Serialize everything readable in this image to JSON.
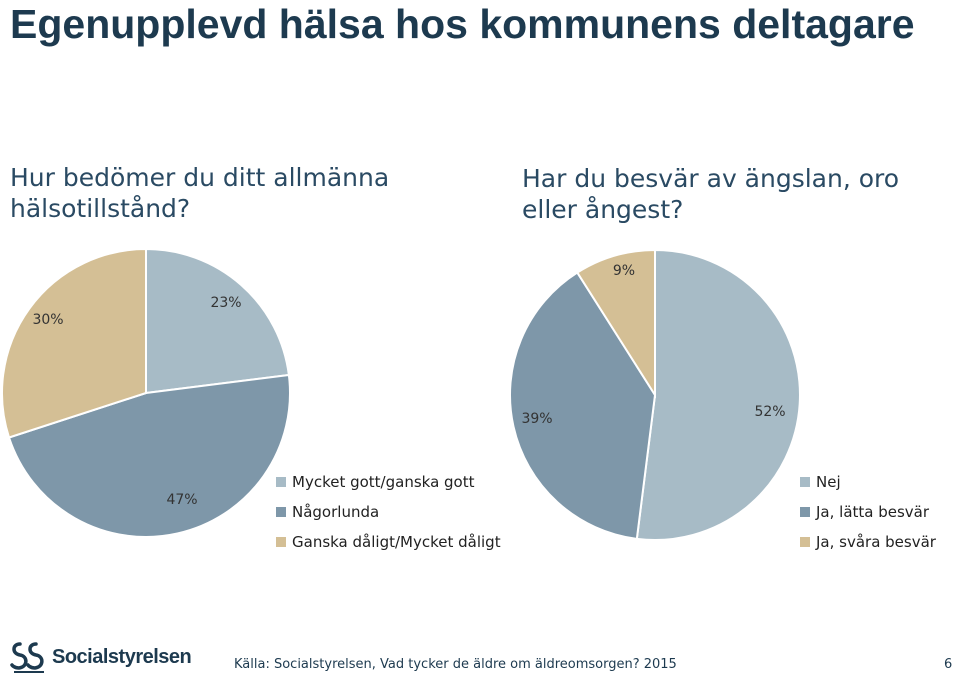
{
  "slide": {
    "title": "Egenupplevd hälsa hos kommunens deltagare",
    "source": "Källa: Socialstyrelsen, Vad tycker de äldre om äldreomsorgen? 2015",
    "page_number": "6",
    "logo_text": "Socialstyrelsen"
  },
  "chart_data": [
    {
      "type": "pie",
      "title": "Hur bedömer du ditt allmänna hälsotillstånd?",
      "categories": [
        "Mycket gott/ganska gott",
        "Någorlunda",
        "Ganska dåligt/Mycket dåligt"
      ],
      "values": [
        23,
        47,
        30
      ],
      "labels": [
        "23%",
        "47%",
        "30%"
      ],
      "colors": [
        "#a7bbc6",
        "#7e97a9",
        "#d4bf95"
      ],
      "legend": "right"
    },
    {
      "type": "pie",
      "title": "Har du besvär av ängslan, oro eller ångest?",
      "categories": [
        "Nej",
        "Ja, lätta besvär",
        "Ja, svåra besvär"
      ],
      "values": [
        52,
        39,
        9
      ],
      "labels": [
        "52%",
        "39%",
        "9%"
      ],
      "colors": [
        "#a7bbc6",
        "#7e97a9",
        "#d4bf95"
      ],
      "legend": "right"
    }
  ]
}
